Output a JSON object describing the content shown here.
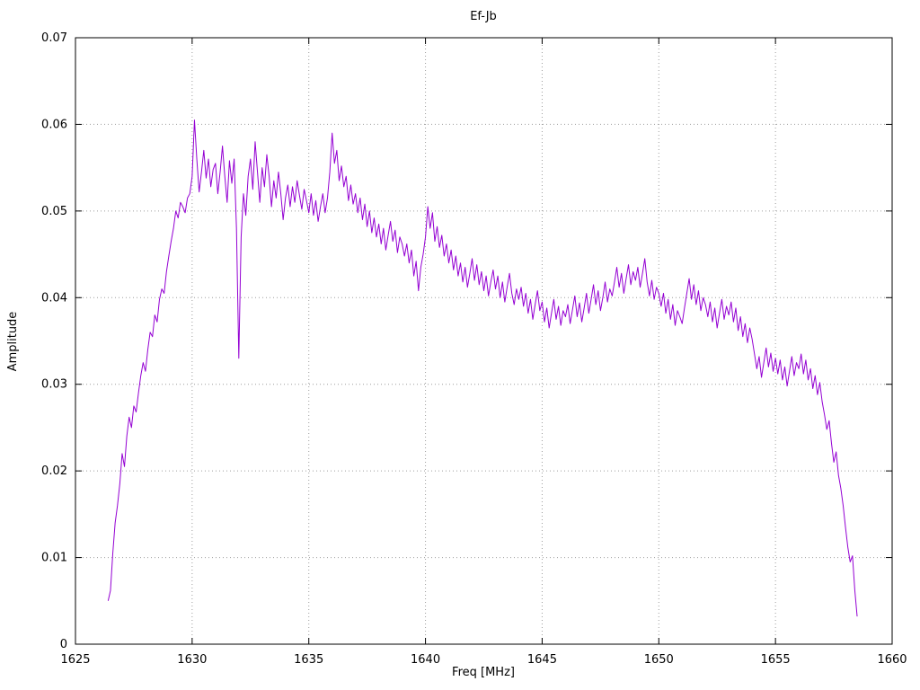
{
  "chart_data": {
    "type": "line",
    "title": "Ef-Jb",
    "xlabel": "Freq [MHz]",
    "ylabel": "Amplitude",
    "xlim": [
      1625,
      1660
    ],
    "ylim": [
      0,
      0.07
    ],
    "grid": true,
    "legend": "none",
    "line_color": "#9400d3",
    "x_ticks": [
      1625,
      1630,
      1635,
      1640,
      1645,
      1650,
      1655,
      1660
    ],
    "x_tick_labels": [
      "1625",
      "1630",
      "1635",
      "1640",
      "1645",
      "1650",
      "1655",
      "1660"
    ],
    "y_ticks": [
      0,
      0.01,
      0.02,
      0.03,
      0.04,
      0.05,
      0.06,
      0.07
    ],
    "y_tick_labels": [
      "0",
      "0.01",
      "0.02",
      "0.03",
      "0.04",
      "0.05",
      "0.06",
      "0.07"
    ],
    "series": [
      {
        "name": "Ef-Jb",
        "x_start": 1626.4,
        "x_step": 0.1,
        "values": [
          0.005,
          0.0062,
          0.0105,
          0.014,
          0.016,
          0.0185,
          0.022,
          0.0205,
          0.024,
          0.0262,
          0.025,
          0.0275,
          0.0268,
          0.029,
          0.031,
          0.0325,
          0.0315,
          0.034,
          0.036,
          0.0355,
          0.038,
          0.0372,
          0.0398,
          0.041,
          0.0405,
          0.043,
          0.0448,
          0.0465,
          0.048,
          0.05,
          0.0492,
          0.051,
          0.0505,
          0.0498,
          0.0515,
          0.052,
          0.054,
          0.0605,
          0.056,
          0.0522,
          0.0545,
          0.057,
          0.0538,
          0.056,
          0.0528,
          0.0548,
          0.0555,
          0.052,
          0.0545,
          0.0575,
          0.054,
          0.051,
          0.0558,
          0.0532,
          0.056,
          0.048,
          0.033,
          0.047,
          0.052,
          0.0495,
          0.054,
          0.056,
          0.0525,
          0.058,
          0.0545,
          0.051,
          0.055,
          0.0528,
          0.0565,
          0.054,
          0.0505,
          0.0535,
          0.0515,
          0.0545,
          0.052,
          0.049,
          0.0515,
          0.053,
          0.0505,
          0.0528,
          0.051,
          0.0535,
          0.0518,
          0.0502,
          0.0525,
          0.0512,
          0.0498,
          0.052,
          0.0495,
          0.0512,
          0.0488,
          0.0505,
          0.052,
          0.0498,
          0.0515,
          0.0545,
          0.059,
          0.0555,
          0.057,
          0.0535,
          0.0552,
          0.0528,
          0.054,
          0.0512,
          0.053,
          0.0508,
          0.052,
          0.0498,
          0.0515,
          0.049,
          0.0508,
          0.0482,
          0.05,
          0.0475,
          0.0492,
          0.047,
          0.0485,
          0.0462,
          0.048,
          0.0455,
          0.0472,
          0.0488,
          0.0465,
          0.0478,
          0.0452,
          0.047,
          0.0462,
          0.0448,
          0.0462,
          0.044,
          0.0455,
          0.0425,
          0.0442,
          0.0408,
          0.0435,
          0.045,
          0.047,
          0.0505,
          0.048,
          0.0498,
          0.0465,
          0.0482,
          0.0458,
          0.0472,
          0.0448,
          0.0462,
          0.044,
          0.0455,
          0.0432,
          0.0448,
          0.0425,
          0.044,
          0.0418,
          0.0435,
          0.0412,
          0.0428,
          0.0445,
          0.042,
          0.0438,
          0.0415,
          0.043,
          0.0408,
          0.0425,
          0.0402,
          0.0418,
          0.0432,
          0.041,
          0.0425,
          0.04,
          0.0418,
          0.0395,
          0.0412,
          0.0428,
          0.0405,
          0.0392,
          0.041,
          0.0398,
          0.0412,
          0.039,
          0.0405,
          0.0382,
          0.0398,
          0.0375,
          0.0392,
          0.0408,
          0.0385,
          0.0395,
          0.0372,
          0.0388,
          0.0365,
          0.0382,
          0.0398,
          0.0375,
          0.039,
          0.0368,
          0.0385,
          0.0378,
          0.0392,
          0.037,
          0.0386,
          0.0402,
          0.0378,
          0.0394,
          0.0372,
          0.0388,
          0.0405,
          0.0382,
          0.0398,
          0.0415,
          0.0392,
          0.0408,
          0.0385,
          0.04,
          0.0418,
          0.0395,
          0.041,
          0.0402,
          0.0418,
          0.0435,
          0.0412,
          0.0428,
          0.0405,
          0.0422,
          0.0438,
          0.0415,
          0.043,
          0.042,
          0.0435,
          0.0412,
          0.0428,
          0.0445,
          0.0418,
          0.0402,
          0.042,
          0.0398,
          0.0412,
          0.0405,
          0.039,
          0.0405,
          0.0382,
          0.0398,
          0.0375,
          0.0392,
          0.0368,
          0.0385,
          0.0378,
          0.037,
          0.0388,
          0.0405,
          0.0422,
          0.0398,
          0.0415,
          0.0392,
          0.0408,
          0.0385,
          0.04,
          0.0392,
          0.0378,
          0.0395,
          0.0372,
          0.0388,
          0.0365,
          0.0382,
          0.0398,
          0.0375,
          0.039,
          0.038,
          0.0395,
          0.0372,
          0.0388,
          0.0362,
          0.0378,
          0.0355,
          0.037,
          0.0348,
          0.0365,
          0.0352,
          0.0335,
          0.0318,
          0.0332,
          0.0308,
          0.0325,
          0.0342,
          0.032,
          0.0336,
          0.0315,
          0.033,
          0.0312,
          0.0328,
          0.0305,
          0.032,
          0.0298,
          0.0315,
          0.0332,
          0.031,
          0.0325,
          0.0318,
          0.0335,
          0.0312,
          0.0328,
          0.0305,
          0.0318,
          0.0295,
          0.031,
          0.0288,
          0.0302,
          0.028,
          0.0265,
          0.0248,
          0.0258,
          0.0232,
          0.021,
          0.0222,
          0.0195,
          0.018,
          0.016,
          0.0135,
          0.0112,
          0.0095,
          0.0102,
          0.0062,
          0.0032
        ]
      }
    ]
  }
}
